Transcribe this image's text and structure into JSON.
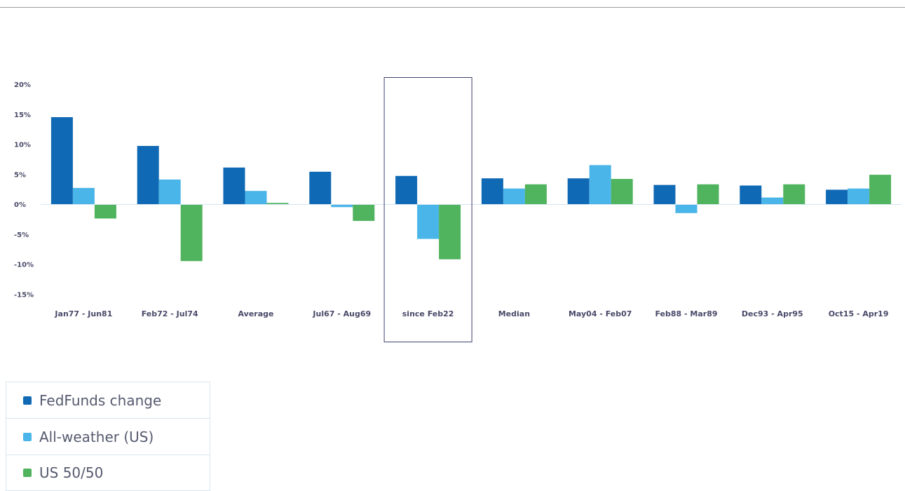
{
  "chart_data": {
    "type": "bar",
    "categories": [
      "Jan77 - Jun81",
      "Feb72 - Jul74",
      "Average",
      "Jul67 - Aug69",
      "since Feb22",
      "Median",
      "May04 - Feb07",
      "Feb88 - Mar89",
      "Dec93 - Apr95",
      "Oct15 - Apr19"
    ],
    "series": [
      {
        "name": "FedFunds change",
        "color": "#0f69b4",
        "values": [
          14.5,
          9.7,
          6.1,
          5.4,
          4.7,
          4.3,
          4.3,
          3.2,
          3.1,
          2.4
        ]
      },
      {
        "name": "All-weather (US)",
        "color": "#4ab5e8",
        "values": [
          2.7,
          4.1,
          2.2,
          -0.5,
          -5.8,
          2.6,
          6.5,
          -1.5,
          1.1,
          2.6
        ]
      },
      {
        "name": "US 50/50",
        "color": "#50b35d",
        "values": [
          -2.4,
          -9.5,
          0.2,
          -2.8,
          -9.2,
          3.3,
          4.2,
          3.3,
          3.3,
          4.9
        ]
      }
    ],
    "y_ticks": [
      "20%",
      "15%",
      "10%",
      "5%",
      "0%",
      "-5%",
      "-10%",
      "-15%"
    ],
    "ylim": [
      -15,
      20
    ],
    "highlighted_category": "since Feb22",
    "grid": false,
    "legend": "bottom-left"
  },
  "legend": [
    {
      "label": "FedFunds change",
      "color": "#0f69b4"
    },
    {
      "label": "All-weather (US)",
      "color": "#4ab5e8"
    },
    {
      "label": "US 50/50",
      "color": "#50b35d"
    }
  ]
}
